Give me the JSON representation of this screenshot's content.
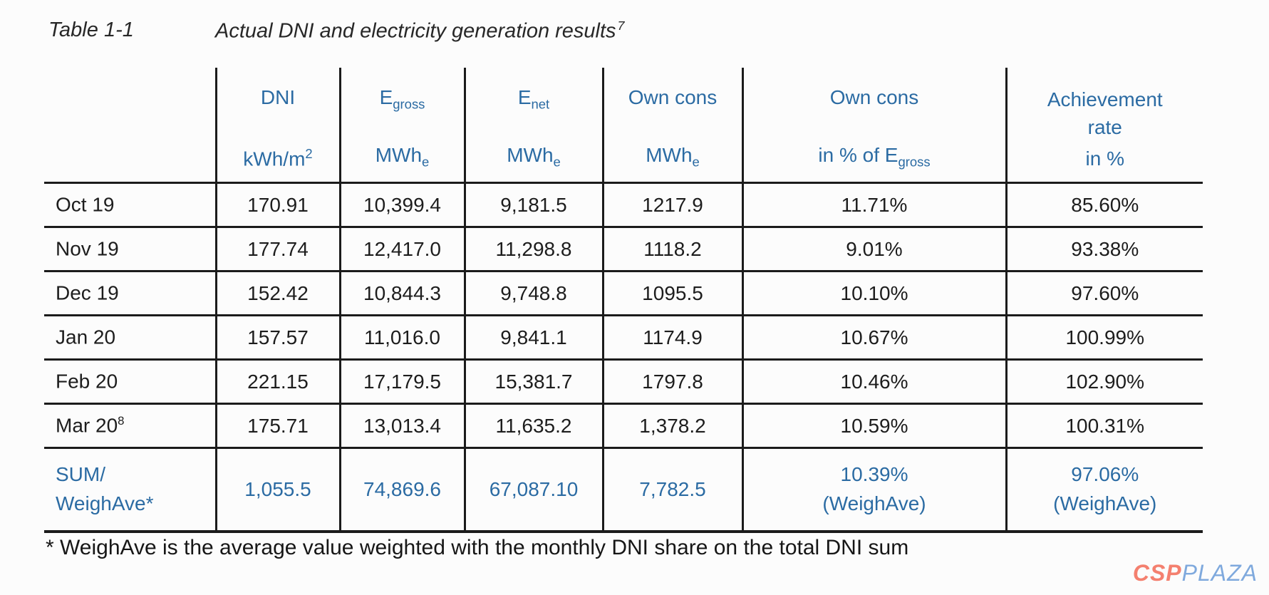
{
  "colors": {
    "header_blue": "#2b6ba3",
    "data_text": "#1d1d1d",
    "border_black": "#1b1b1b",
    "background": "#fcfcfc",
    "logo_csp": "#f4806f",
    "logo_plaza": "#7fa9dd"
  },
  "title": {
    "label": "Table 1-1",
    "text": "Actual DNI and electricity generation results",
    "footnote_ref": "7"
  },
  "table": {
    "header": {
      "dni": {
        "line1": "DNI",
        "unit_base": "kWh/m",
        "unit_sup": "2"
      },
      "egross": {
        "base": "E",
        "sub": "gross",
        "unit_base": "MWh",
        "unit_sub": "e"
      },
      "enet": {
        "base": "E",
        "sub": "net",
        "unit_base": "MWh",
        "unit_sub": "e"
      },
      "own_cons": {
        "line1": "Own cons",
        "unit_base": "MWh",
        "unit_sub": "e"
      },
      "own_cons_pct": {
        "line1": "Own cons",
        "line2_pre": "in % of ",
        "line2_base": "E",
        "line2_sub": "gross"
      },
      "achievement": {
        "line1": "Achievement",
        "line2": "rate",
        "line3": "in %"
      }
    },
    "rows": [
      {
        "month": "Oct 19",
        "dni": "170.91",
        "egross": "10,399.4",
        "enet": "9,181.5",
        "own_cons": "1217.9",
        "own_cons_pct": "11.71%",
        "achievement": "85.60%"
      },
      {
        "month": "Nov 19",
        "dni": "177.74",
        "egross": "12,417.0",
        "enet": "11,298.8",
        "own_cons": "1118.2",
        "own_cons_pct": "9.01%",
        "achievement": "93.38%"
      },
      {
        "month": "Dec 19",
        "dni": "152.42",
        "egross": "10,844.3",
        "enet": "9,748.8",
        "own_cons": "1095.5",
        "own_cons_pct": "10.10%",
        "achievement": "97.60%"
      },
      {
        "month": "Jan 20",
        "dni": "157.57",
        "egross": "11,016.0",
        "enet": "9,841.1",
        "own_cons": "1174.9",
        "own_cons_pct": "10.67%",
        "achievement": "100.99%"
      },
      {
        "month": "Feb 20",
        "dni": "221.15",
        "egross": "17,179.5",
        "enet": "15,381.7",
        "own_cons": "1797.8",
        "own_cons_pct": "10.46%",
        "achievement": "102.90%"
      },
      {
        "month": "Mar 20",
        "month_sup": "8",
        "dni": "175.71",
        "egross": "13,013.4",
        "enet": "11,635.2",
        "own_cons": "1,378.2",
        "own_cons_pct": "10.59%",
        "achievement": "100.31%"
      }
    ],
    "sum_row": {
      "month_line1": "SUM/",
      "month_line2": "WeighAve*",
      "dni": "1,055.5",
      "egross": "74,869.6",
      "enet": "67,087.10",
      "own_cons": "7,782.5",
      "own_cons_pct": "10.39%",
      "own_cons_pct_note": "(WeighAve)",
      "achievement": "97.06%",
      "achievement_note": "(WeighAve)"
    }
  },
  "footnote": "* WeighAve is the average value weighted with the monthly DNI share on the total DNI sum",
  "logo": {
    "part1": "CSP",
    "part2": "PLAZA"
  }
}
